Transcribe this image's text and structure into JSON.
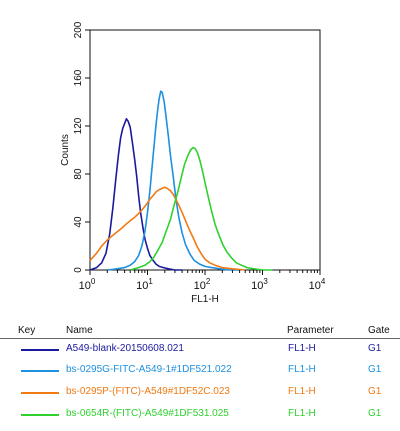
{
  "chart_data": {
    "type": "line",
    "xscale": "log",
    "xlabel": "FL1-H",
    "ylabel": "Counts",
    "xlim": [
      1,
      10000
    ],
    "ylim": [
      0,
      200
    ],
    "xticks": [
      {
        "value": 1,
        "base": "10",
        "exp": "0"
      },
      {
        "value": 10,
        "base": "10",
        "exp": "1"
      },
      {
        "value": 100,
        "base": "10",
        "exp": "2"
      },
      {
        "value": 1000,
        "base": "10",
        "exp": "3"
      },
      {
        "value": 10000,
        "base": "10",
        "exp": "4"
      }
    ],
    "yticks": [
      "0",
      "40",
      "80",
      "120",
      "160",
      "200"
    ],
    "grid": false,
    "series": [
      {
        "name": "A549-blank-20150608.021",
        "color": "#1a1a9e",
        "points": [
          [
            1,
            0
          ],
          [
            1.3,
            2
          ],
          [
            1.6,
            6
          ],
          [
            1.9,
            14
          ],
          [
            2.2,
            30
          ],
          [
            2.5,
            52
          ],
          [
            2.8,
            75
          ],
          [
            3.1,
            95
          ],
          [
            3.4,
            110
          ],
          [
            3.7,
            118
          ],
          [
            4.0,
            122
          ],
          [
            4.3,
            126
          ],
          [
            4.6,
            124
          ],
          [
            5.0,
            119
          ],
          [
            5.5,
            105
          ],
          [
            6.0,
            92
          ],
          [
            6.5,
            78
          ],
          [
            7.0,
            62
          ],
          [
            7.6,
            48
          ],
          [
            8.3,
            36
          ],
          [
            9.0,
            26
          ],
          [
            10,
            18
          ],
          [
            11,
            12
          ],
          [
            12.5,
            8
          ],
          [
            14,
            5
          ],
          [
            16,
            3
          ],
          [
            19,
            2
          ],
          [
            23,
            1
          ],
          [
            30,
            0
          ],
          [
            40,
            0
          ]
        ]
      },
      {
        "name": "bs-0295G-FITC-A549-1#1DF521.022",
        "color": "#1e90e0",
        "points": [
          [
            2,
            0
          ],
          [
            3,
            1
          ],
          [
            4,
            2
          ],
          [
            5,
            4
          ],
          [
            6,
            7
          ],
          [
            7,
            12
          ],
          [
            8,
            20
          ],
          [
            9,
            32
          ],
          [
            10,
            48
          ],
          [
            11,
            66
          ],
          [
            12,
            86
          ],
          [
            13,
            104
          ],
          [
            14,
            120
          ],
          [
            15,
            133
          ],
          [
            16,
            143
          ],
          [
            17,
            149
          ],
          [
            18,
            148
          ],
          [
            19.5,
            140
          ],
          [
            21,
            128
          ],
          [
            23,
            112
          ],
          [
            25,
            96
          ],
          [
            28,
            78
          ],
          [
            31,
            60
          ],
          [
            35,
            44
          ],
          [
            40,
            31
          ],
          [
            46,
            21
          ],
          [
            55,
            13
          ],
          [
            65,
            8
          ],
          [
            80,
            5
          ],
          [
            100,
            3
          ],
          [
            130,
            2
          ],
          [
            180,
            1
          ],
          [
            260,
            0
          ],
          [
            400,
            0
          ]
        ]
      },
      {
        "name": "bs-0295P-(FITC)-A549#1DF52C.023",
        "color": "#f07a14",
        "points": [
          [
            1,
            8
          ],
          [
            1.3,
            14
          ],
          [
            1.6,
            20
          ],
          [
            2,
            25
          ],
          [
            2.5,
            29
          ],
          [
            3,
            32
          ],
          [
            3.6,
            35
          ],
          [
            4.2,
            38
          ],
          [
            5,
            41
          ],
          [
            6,
            44
          ],
          [
            7,
            47
          ],
          [
            8,
            50
          ],
          [
            9,
            53
          ],
          [
            10,
            56
          ],
          [
            11,
            59
          ],
          [
            12.5,
            62
          ],
          [
            14,
            65
          ],
          [
            16,
            67
          ],
          [
            18,
            68
          ],
          [
            20,
            69
          ],
          [
            22,
            68
          ],
          [
            25,
            66
          ],
          [
            28,
            63
          ],
          [
            31,
            59
          ],
          [
            35,
            54
          ],
          [
            40,
            48
          ],
          [
            46,
            41
          ],
          [
            53,
            34
          ],
          [
            62,
            27
          ],
          [
            72,
            20
          ],
          [
            85,
            14
          ],
          [
            100,
            9
          ],
          [
            120,
            6
          ],
          [
            150,
            4
          ],
          [
            200,
            2
          ],
          [
            300,
            1
          ],
          [
            500,
            0
          ]
        ]
      },
      {
        "name": "bs-0654R-(FITC)-A549#1DF531.025",
        "color": "#2ed12e",
        "points": [
          [
            5,
            0
          ],
          [
            7,
            2
          ],
          [
            9,
            4
          ],
          [
            11,
            7
          ],
          [
            13,
            11
          ],
          [
            15,
            16
          ],
          [
            18,
            23
          ],
          [
            21,
            32
          ],
          [
            25,
            42
          ],
          [
            29,
            54
          ],
          [
            34,
            66
          ],
          [
            39,
            78
          ],
          [
            44,
            88
          ],
          [
            50,
            95
          ],
          [
            56,
            100
          ],
          [
            62,
            102
          ],
          [
            68,
            101
          ],
          [
            75,
            97
          ],
          [
            83,
            90
          ],
          [
            92,
            81
          ],
          [
            102,
            71
          ],
          [
            115,
            60
          ],
          [
            130,
            49
          ],
          [
            150,
            38
          ],
          [
            175,
            29
          ],
          [
            205,
            21
          ],
          [
            240,
            15
          ],
          [
            290,
            10
          ],
          [
            350,
            6
          ],
          [
            430,
            4
          ],
          [
            540,
            2
          ],
          [
            700,
            1
          ],
          [
            1000,
            0
          ],
          [
            1500,
            0
          ]
        ]
      }
    ]
  },
  "key_table": {
    "headers": {
      "key": "Key",
      "name": "Name",
      "parameter": "Parameter",
      "gate": "Gate"
    },
    "rows": [
      {
        "color": "#1a1a9e",
        "name": "A549-blank-20150608.021",
        "parameter": "FL1-H",
        "gate": "G1"
      },
      {
        "color": "#1e90e0",
        "name": "bs-0295G-FITC-A549-1#1DF521.022",
        "parameter": "FL1-H",
        "gate": "G1"
      },
      {
        "color": "#f07a14",
        "name": "bs-0295P-(FITC)-A549#1DF52C.023",
        "parameter": "FL1-H",
        "gate": "G1"
      },
      {
        "color": "#2ed12e",
        "name": "bs-0654R-(FITC)-A549#1DF531.025",
        "parameter": "FL1-H",
        "gate": "G1"
      }
    ]
  }
}
